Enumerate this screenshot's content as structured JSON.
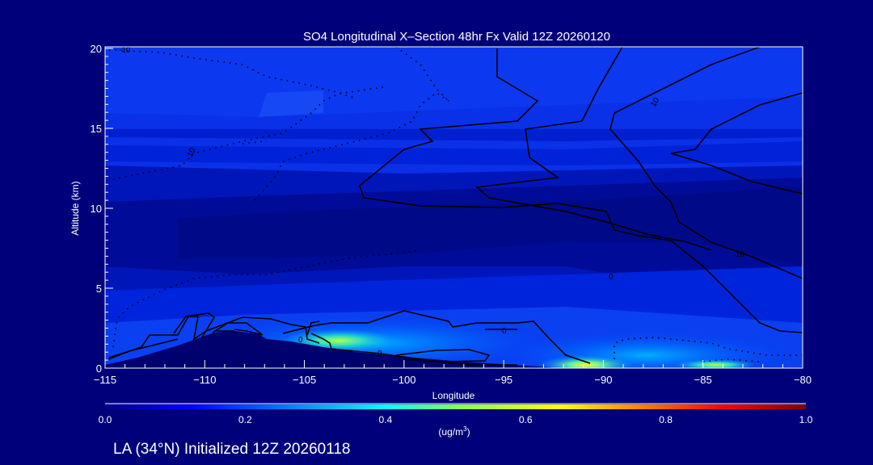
{
  "chart_data": {
    "type": "heatmap",
    "subtype": "filled-contour cross-section with overlaid line contours",
    "title": "SO4 Longitudinal X–Section 48hr  Fx Valid 12Z 20260120",
    "xlabel": "Longitude",
    "ylabel": "Altitude (km)",
    "xlim": [
      -115,
      -80
    ],
    "ylim": [
      0,
      20
    ],
    "xticks": [
      -115,
      -110,
      -105,
      -100,
      -95,
      -90,
      -85,
      -80
    ],
    "xtick_labels": [
      "−115",
      "−110",
      "−105",
      "−100",
      "−95",
      "−90",
      "−85",
      "−80"
    ],
    "yticks": [
      0,
      5,
      10,
      15,
      20
    ],
    "ytick_labels": [
      "0",
      "5",
      "10",
      "15",
      "20"
    ],
    "colorbar": {
      "range": [
        0.0,
        1.0
      ],
      "tick_values": [
        0.0,
        0.2,
        0.4,
        0.6,
        0.8,
        1.0
      ],
      "tick_labels": [
        "0.0",
        "0.2",
        "0.4",
        "0.6",
        "0.8",
        "1.0"
      ],
      "units_label": "(ug/m",
      "units_superscript": "3",
      "units_close": ")",
      "colors": [
        "#00008a",
        "#0000ff",
        "#00a0ff",
        "#00ffff",
        "#80ff60",
        "#ffff00",
        "#ff9000",
        "#ff0000",
        "#800000"
      ]
    },
    "contour_labels": [
      "-10",
      "10",
      "10",
      "0",
      "0",
      "0",
      "0",
      "10"
    ],
    "max_concentration_region": {
      "longitude": [
        -92,
        -89
      ],
      "altitude_km": [
        0,
        0.5
      ],
      "value_approx": 0.6
    },
    "secondary_maxima": [
      {
        "longitude": -103,
        "altitude_km": 1.5,
        "value_approx": 0.5
      },
      {
        "longitude": -85,
        "altitude_km": 0.3,
        "value_approx": 0.5
      }
    ],
    "terrain_peak": {
      "longitude": -108.5,
      "altitude_km": 2.2
    }
  },
  "footer": {
    "text": "LA (34°N) Initialized 12Z 20260118"
  }
}
